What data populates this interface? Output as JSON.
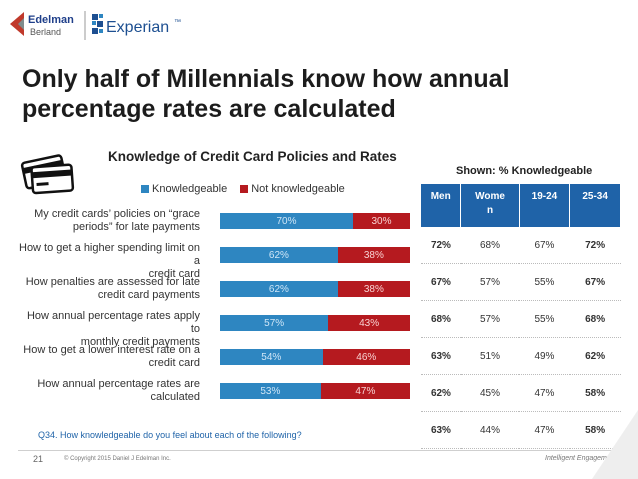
{
  "header": {
    "logo_edelman_line1": "Edelman",
    "logo_edelman_line2": "Berland",
    "logo_experian": "Experian",
    "logo_experian_tm": "™"
  },
  "title_line1": "Only half of Millennials know how annual",
  "title_line2": "percentage rates are calculated",
  "chart_data": {
    "type": "bar",
    "stacked": true,
    "orientation": "horizontal",
    "title": "Knowledge of Credit Card Policies and Rates",
    "legend_position": "top",
    "categories": [
      [
        "My credit cards’ policies on “grace",
        "periods” for late payments"
      ],
      [
        "How to get a higher spending limit on a",
        "credit card"
      ],
      [
        "How penalties are assessed for late",
        "credit card payments"
      ],
      [
        "How annual percentage rates apply to",
        "monthly credit payments"
      ],
      [
        "How to get a lower interest rate on a",
        "credit card"
      ],
      [
        "How annual percentage rates are",
        "calculated"
      ]
    ],
    "series": [
      {
        "name": "Knowledgeable",
        "color": "#2e86c1",
        "values": [
          70,
          62,
          62,
          57,
          54,
          53
        ],
        "labels": [
          "70%",
          "62%",
          "62%",
          "57%",
          "54%",
          "53%"
        ]
      },
      {
        "name": "Not knowledgeable",
        "color": "#b51a1f",
        "values": [
          30,
          38,
          38,
          43,
          46,
          47
        ],
        "labels": [
          "30%",
          "38%",
          "38%",
          "43%",
          "46%",
          "47%"
        ]
      }
    ],
    "xlim": [
      0,
      100
    ]
  },
  "table": {
    "caption": "Shown: % Knowledgeable",
    "headers": [
      [
        "Men"
      ],
      [
        "Wome",
        "n"
      ],
      [
        "19-24"
      ],
      [
        "25-34"
      ]
    ],
    "rows": [
      [
        {
          "v": "72%",
          "b": true
        },
        {
          "v": "68%",
          "b": false
        },
        {
          "v": "67%",
          "b": false
        },
        {
          "v": "72%",
          "b": true
        }
      ],
      [
        {
          "v": "67%",
          "b": true
        },
        {
          "v": "57%",
          "b": false
        },
        {
          "v": "55%",
          "b": false
        },
        {
          "v": "67%",
          "b": true
        }
      ],
      [
        {
          "v": "68%",
          "b": true
        },
        {
          "v": "57%",
          "b": false
        },
        {
          "v": "55%",
          "b": false
        },
        {
          "v": "68%",
          "b": true
        }
      ],
      [
        {
          "v": "63%",
          "b": true
        },
        {
          "v": "51%",
          "b": false
        },
        {
          "v": "49%",
          "b": false
        },
        {
          "v": "62%",
          "b": true
        }
      ],
      [
        {
          "v": "62%",
          "b": true
        },
        {
          "v": "45%",
          "b": false
        },
        {
          "v": "47%",
          "b": false
        },
        {
          "v": "58%",
          "b": true
        }
      ],
      [
        {
          "v": "63%",
          "b": true
        },
        {
          "v": "44%",
          "b": false
        },
        {
          "v": "47%",
          "b": false
        },
        {
          "v": "58%",
          "b": true
        }
      ]
    ]
  },
  "question": "Q34. How knowledgeable do you feel about each of the following?",
  "footer": {
    "page_number": "21",
    "copyright": "© Copyright 2015 Daniel J Edelman Inc.",
    "tagline": "Intelligent Engagement"
  },
  "colors": {
    "blue": "#2e86c1",
    "red": "#b51a1f",
    "table_header": "#1f63a8"
  }
}
